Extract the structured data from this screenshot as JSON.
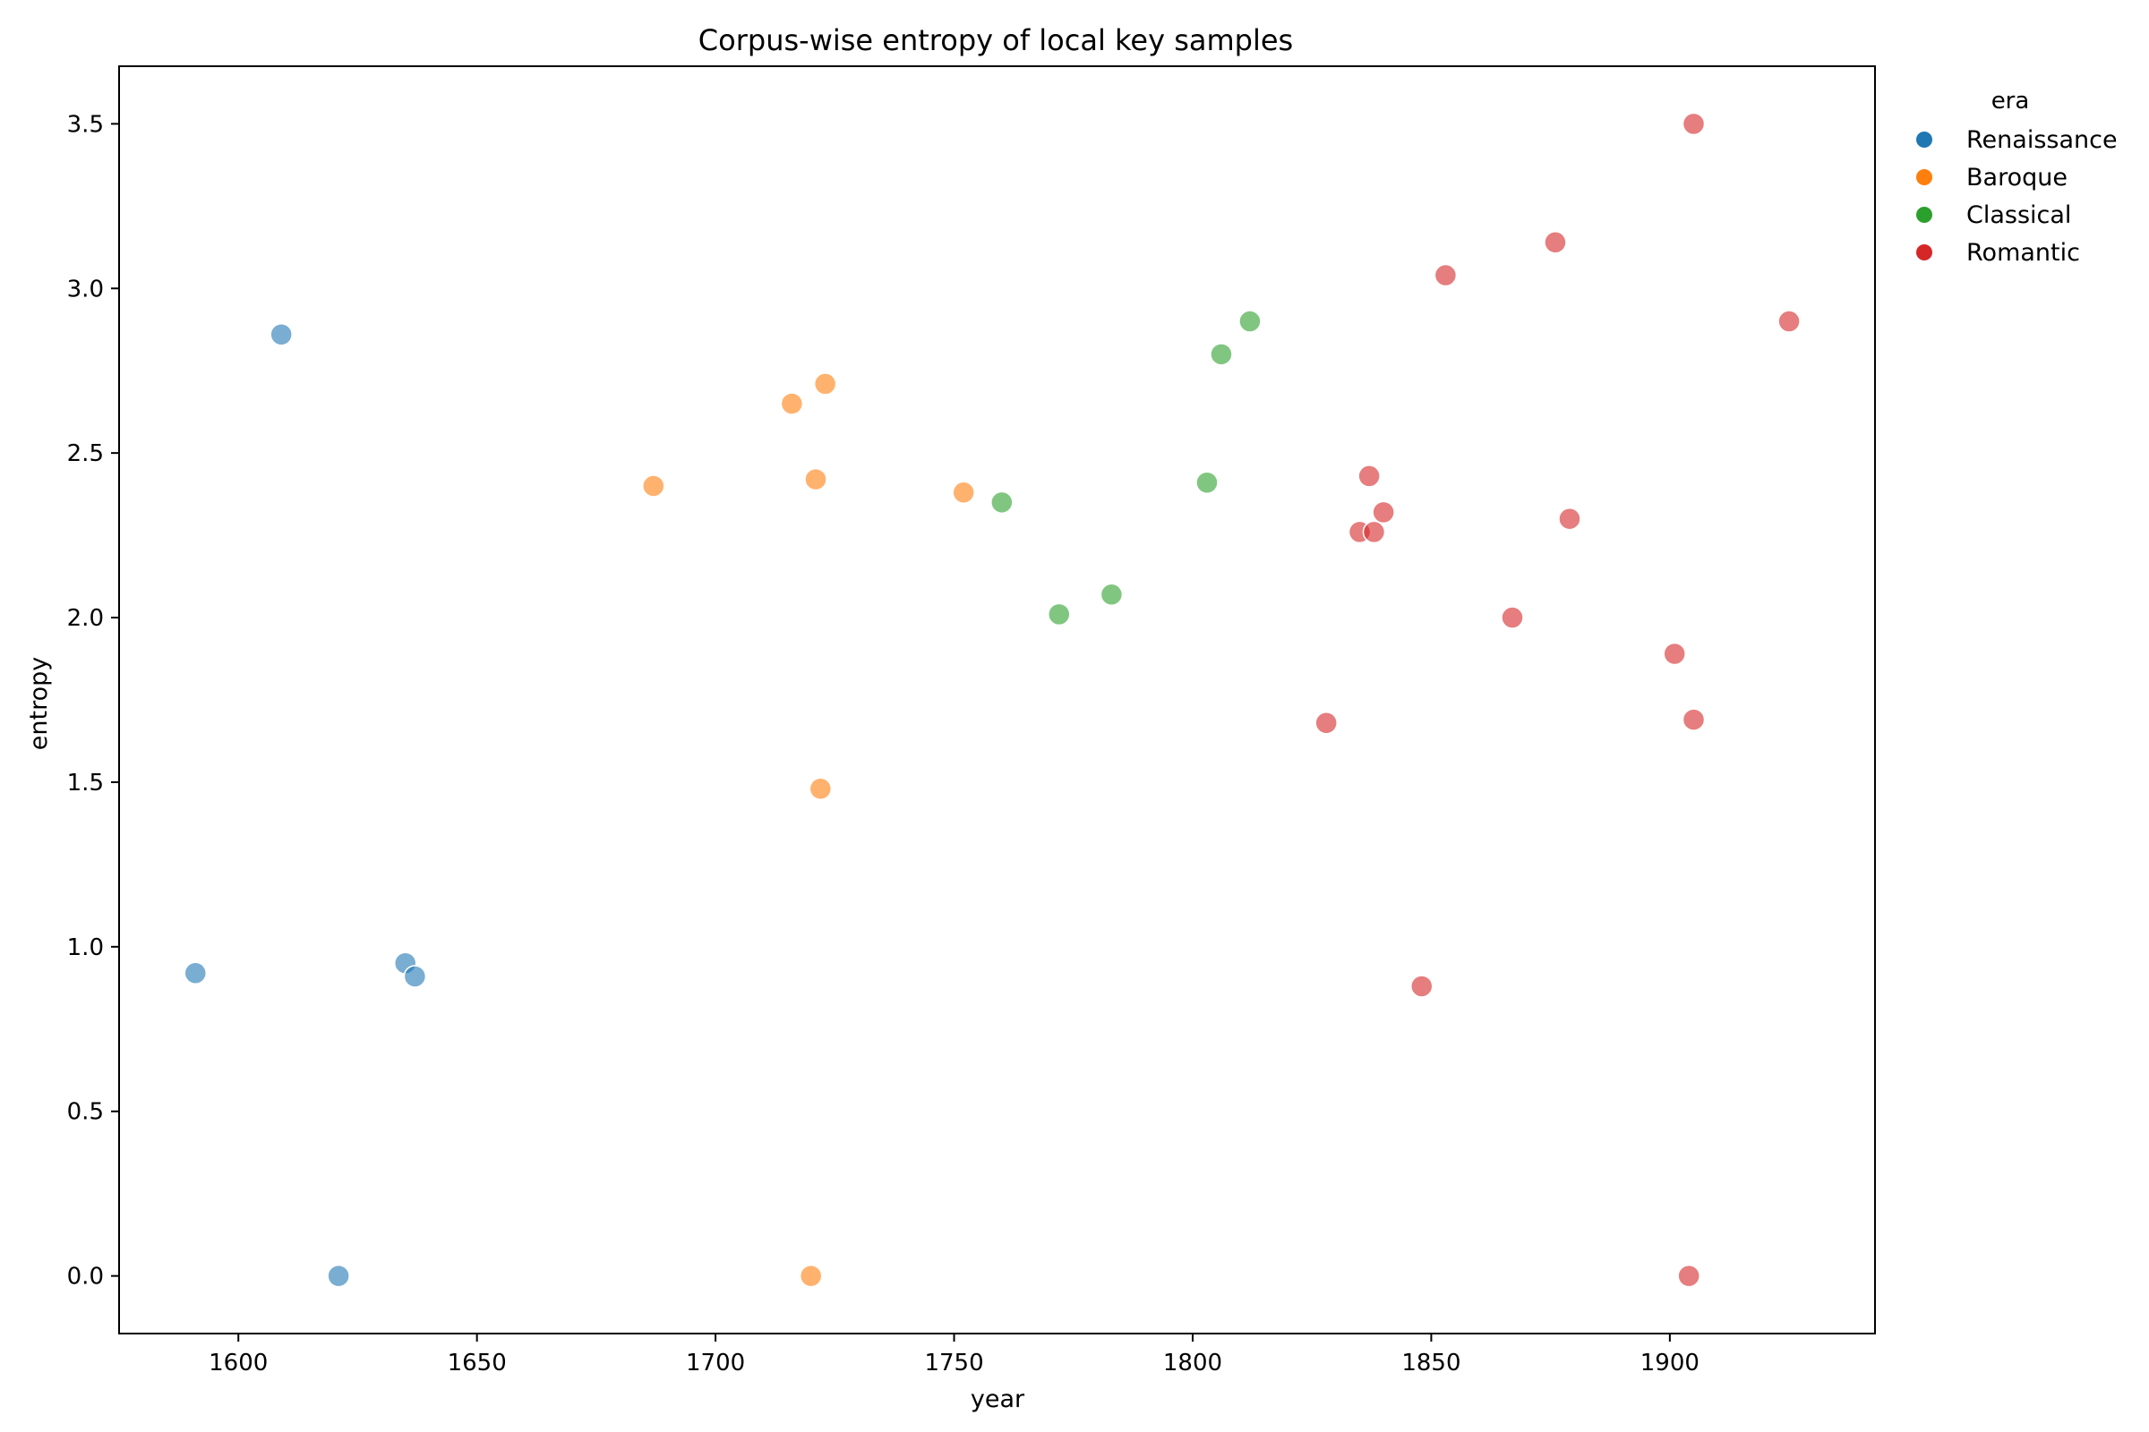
{
  "chart_data": {
    "type": "scatter",
    "title": "Corpus-wise entropy of local key samples",
    "xlabel": "year",
    "ylabel": "entropy",
    "xlim": [
      1575,
      1943
    ],
    "ylim": [
      -0.175,
      3.675
    ],
    "xticks": [
      1600,
      1650,
      1700,
      1750,
      1800,
      1850,
      1900
    ],
    "yticks": [
      0.0,
      0.5,
      1.0,
      1.5,
      2.0,
      2.5,
      3.0,
      3.5
    ],
    "xtick_labels": [
      "1600",
      "1650",
      "1700",
      "1750",
      "1800",
      "1850",
      "1900"
    ],
    "ytick_labels": [
      "0.0",
      "0.5",
      "1.0",
      "1.5",
      "2.0",
      "2.5",
      "3.0",
      "3.5"
    ],
    "grid": false,
    "legend_position": "outside-top-right",
    "legend_title": "era",
    "series": [
      {
        "name": "Renaissance",
        "color": "#1f77b4",
        "points": [
          {
            "x": 1591,
            "y": 0.92
          },
          {
            "x": 1609,
            "y": 2.86
          },
          {
            "x": 1621,
            "y": 0.0
          },
          {
            "x": 1635,
            "y": 0.95
          },
          {
            "x": 1637,
            "y": 0.91
          }
        ]
      },
      {
        "name": "Baroque",
        "color": "#ff7f0e",
        "points": [
          {
            "x": 1687,
            "y": 2.4
          },
          {
            "x": 1716,
            "y": 2.65
          },
          {
            "x": 1720,
            "y": 0.0
          },
          {
            "x": 1721,
            "y": 2.42
          },
          {
            "x": 1722,
            "y": 1.48
          },
          {
            "x": 1723,
            "y": 2.71
          },
          {
            "x": 1752,
            "y": 2.38
          }
        ]
      },
      {
        "name": "Classical",
        "color": "#2ca02c",
        "points": [
          {
            "x": 1760,
            "y": 2.35
          },
          {
            "x": 1772,
            "y": 2.01
          },
          {
            "x": 1783,
            "y": 2.07
          },
          {
            "x": 1803,
            "y": 2.41
          },
          {
            "x": 1806,
            "y": 2.8
          },
          {
            "x": 1812,
            "y": 2.9
          }
        ]
      },
      {
        "name": "Romantic",
        "color": "#d62728",
        "points": [
          {
            "x": 1828,
            "y": 1.68
          },
          {
            "x": 1835,
            "y": 2.26
          },
          {
            "x": 1837,
            "y": 2.43
          },
          {
            "x": 1838,
            "y": 2.26
          },
          {
            "x": 1840,
            "y": 2.32
          },
          {
            "x": 1848,
            "y": 0.88
          },
          {
            "x": 1853,
            "y": 3.04
          },
          {
            "x": 1867,
            "y": 2.0
          },
          {
            "x": 1876,
            "y": 3.14
          },
          {
            "x": 1879,
            "y": 2.3
          },
          {
            "x": 1901,
            "y": 1.89
          },
          {
            "x": 1904,
            "y": 0.0
          },
          {
            "x": 1905,
            "y": 3.5
          },
          {
            "x": 1905,
            "y": 1.69
          },
          {
            "x": 1925,
            "y": 2.9
          }
        ]
      }
    ]
  }
}
